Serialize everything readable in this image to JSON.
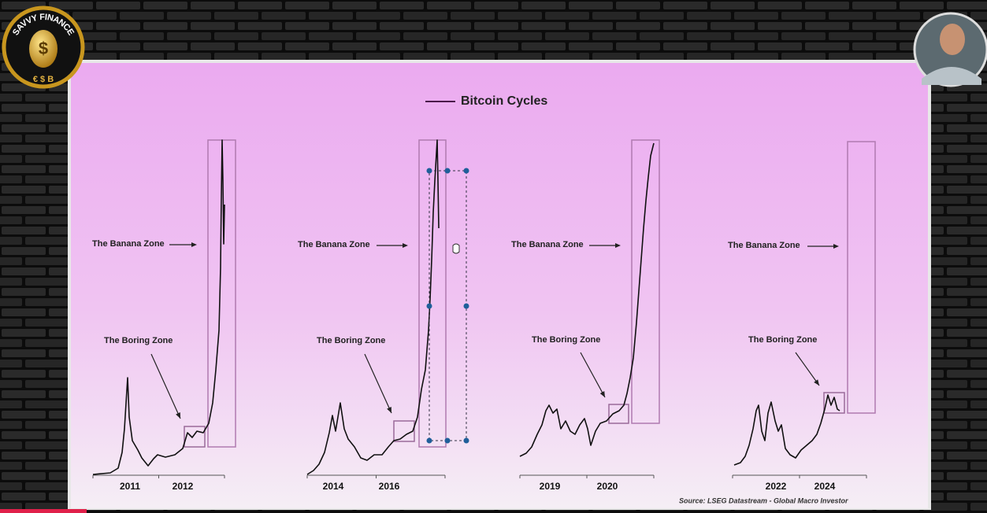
{
  "logo": {
    "text": "SAVVY FINANCE",
    "symbols": "€ $ B",
    "center": "$"
  },
  "slide": {
    "legend": "Bitcoin Cycles",
    "panels": [
      {
        "banana": "The Banana Zone",
        "boring": "The Boring Zone",
        "years": [
          "2011",
          "2012"
        ]
      },
      {
        "banana": "The Banana Zone",
        "boring": "The Boring Zone",
        "years": [
          "2014",
          "2016"
        ]
      },
      {
        "banana": "The Banana Zone",
        "boring": "The Boring Zone",
        "years": [
          "2019",
          "2020"
        ]
      },
      {
        "banana": "The Banana Zone",
        "boring": "The Boring Zone",
        "years": [
          "2022",
          "2024"
        ]
      }
    ],
    "source": "Source: LSEG Datastream - Global Macro Investor"
  }
}
